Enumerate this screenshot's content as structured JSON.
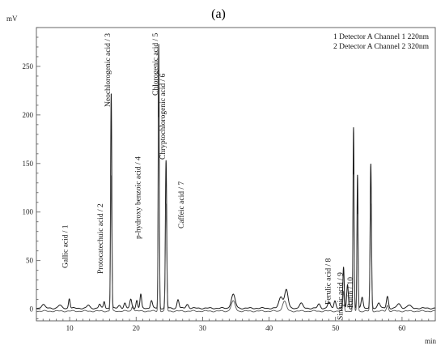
{
  "panel_label": "(a)",
  "chart_data": {
    "type": "line",
    "title": "",
    "xlabel": "min",
    "ylabel": "mV",
    "xlim": [
      5,
      65
    ],
    "ylim": [
      -12,
      290
    ],
    "xticks": [
      10,
      20,
      30,
      40,
      50,
      60
    ],
    "yticks": [
      0,
      50,
      100,
      150,
      200,
      250
    ],
    "grid": false,
    "legend_position": "top-right",
    "legend": [
      "1 Detector A Channel 1 220nm",
      "2 Detector A Channel 2 320nm"
    ],
    "series": [
      {
        "name": "1 Detector A Channel 1 220nm",
        "baseline": 1,
        "peaks": [
          {
            "t": 6.0,
            "h": 4,
            "w": 0.25
          },
          {
            "t": 8.5,
            "h": 3,
            "w": 0.25
          },
          {
            "t": 9.95,
            "h": 10,
            "w": 0.12
          },
          {
            "t": 12.8,
            "h": 3,
            "w": 0.2
          },
          {
            "t": 14.5,
            "h": 4,
            "w": 0.15
          },
          {
            "t": 15.2,
            "h": 7,
            "w": 0.12
          },
          {
            "t": 16.25,
            "h": 222,
            "w": 0.09
          },
          {
            "t": 17.5,
            "h": 3,
            "w": 0.2
          },
          {
            "t": 18.3,
            "h": 5,
            "w": 0.15
          },
          {
            "t": 19.2,
            "h": 9,
            "w": 0.15
          },
          {
            "t": 20.1,
            "h": 8,
            "w": 0.12
          },
          {
            "t": 20.7,
            "h": 14,
            "w": 0.12
          },
          {
            "t": 22.3,
            "h": 8,
            "w": 0.15
          },
          {
            "t": 23.4,
            "h": 272,
            "w": 0.08
          },
          {
            "t": 24.5,
            "h": 152,
            "w": 0.1
          },
          {
            "t": 26.3,
            "h": 9,
            "w": 0.15
          },
          {
            "t": 27.7,
            "h": 4,
            "w": 0.2
          },
          {
            "t": 34.6,
            "h": 14,
            "w": 0.3
          },
          {
            "t": 41.8,
            "h": 12,
            "w": 0.3
          },
          {
            "t": 42.6,
            "h": 19,
            "w": 0.25
          },
          {
            "t": 44.8,
            "h": 5,
            "w": 0.25
          },
          {
            "t": 47.5,
            "h": 4,
            "w": 0.2
          },
          {
            "t": 49.0,
            "h": 6,
            "w": 0.2
          },
          {
            "t": 49.9,
            "h": 8,
            "w": 0.15
          },
          {
            "t": 51.2,
            "h": 42,
            "w": 0.1
          },
          {
            "t": 51.8,
            "h": 24,
            "w": 0.12
          },
          {
            "t": 52.7,
            "h": 186,
            "w": 0.08
          },
          {
            "t": 53.3,
            "h": 137,
            "w": 0.08
          },
          {
            "t": 54.0,
            "h": 12,
            "w": 0.15
          },
          {
            "t": 55.3,
            "h": 148,
            "w": 0.1
          },
          {
            "t": 56.5,
            "h": 6,
            "w": 0.2
          },
          {
            "t": 57.8,
            "h": 12,
            "w": 0.15
          },
          {
            "t": 59.5,
            "h": 4,
            "w": 0.3
          },
          {
            "t": 61.0,
            "h": 3,
            "w": 0.3
          }
        ]
      },
      {
        "name": "2 Detector A Channel 2 320nm",
        "baseline": -2,
        "peaks": [
          {
            "t": 16.25,
            "h": 140,
            "w": 0.09
          },
          {
            "t": 19.5,
            "h": 6,
            "w": 0.15
          },
          {
            "t": 23.4,
            "h": 200,
            "w": 0.08
          },
          {
            "t": 24.5,
            "h": 110,
            "w": 0.1
          },
          {
            "t": 34.6,
            "h": 10,
            "w": 0.3
          },
          {
            "t": 42.3,
            "h": 10,
            "w": 0.3
          },
          {
            "t": 51.2,
            "h": 20,
            "w": 0.1
          },
          {
            "t": 52.7,
            "h": 140,
            "w": 0.08
          },
          {
            "t": 53.3,
            "h": 100,
            "w": 0.08
          },
          {
            "t": 55.3,
            "h": 110,
            "w": 0.1
          },
          {
            "t": 57.8,
            "h": 6,
            "w": 0.15
          }
        ]
      }
    ],
    "annotations": [
      {
        "text": "Gallic acid / 1",
        "x": 9.9
      },
      {
        "text": "Protocatechuic acid / 2",
        "x": 15.2
      },
      {
        "text": "Neochlorogenic acid / 3",
        "x": 16.3
      },
      {
        "text": "p-hydroxy benzoic acid / 4",
        "x": 20.9
      },
      {
        "text": "Chlorogenic acid / 5",
        "x": 23.5
      },
      {
        "text": "Chryptochlorogenic acid / 6",
        "x": 24.6
      },
      {
        "text": "Caffeic acid / 7",
        "x": 27.4
      },
      {
        "text": "Ferulic acid / 8",
        "x": 49.5
      },
      {
        "text": "Sinapic acid / 9",
        "x": 51.3
      },
      {
        "text": "Rutin / 10",
        "x": 52.8
      }
    ]
  }
}
